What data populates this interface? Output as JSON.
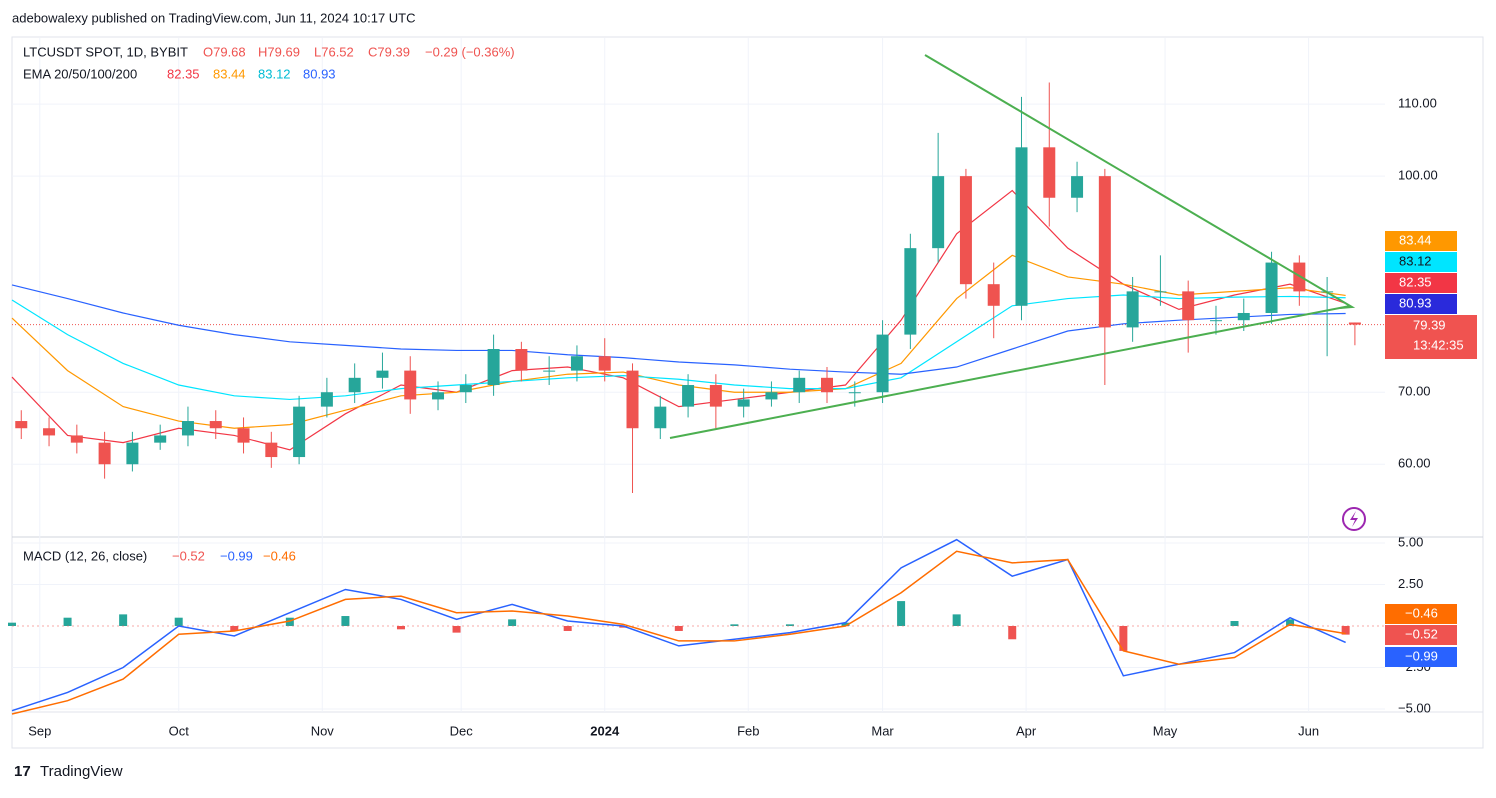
{
  "header": "adebowalexy published on TradingView.com, Jun 11, 2024 10:17 UTC",
  "footer": "TradingView",
  "chart_data": {
    "type": "candlestick",
    "symbol": "LTCUSDT SPOT, 1D, BYBIT",
    "ohlc_legend": {
      "open": "O79.68",
      "high": "H79.69",
      "low": "L76.52",
      "close": "C79.39",
      "change": "−0.29 (−0.36%)"
    },
    "x": [
      -4,
      2,
      8,
      14,
      20,
      26,
      32,
      38,
      44,
      50,
      56,
      62,
      68,
      74,
      80,
      86,
      92,
      98,
      104,
      110,
      116,
      122,
      128,
      134,
      140,
      146,
      152,
      158,
      164,
      170,
      176,
      182,
      188,
      194,
      200,
      206,
      212,
      218,
      224,
      230,
      236,
      242,
      248,
      254,
      260,
      266,
      272,
      278,
      284
    ],
    "open": [
      66,
      65,
      64,
      63,
      60,
      63,
      64,
      66,
      65,
      63,
      61,
      68,
      70,
      72,
      73,
      69,
      70,
      71,
      76,
      73,
      73,
      75,
      73,
      65,
      68,
      71,
      68,
      69,
      70,
      72,
      70,
      70,
      78,
      90,
      100,
      85,
      82,
      104,
      97,
      100,
      79,
      84,
      84,
      80,
      80,
      81,
      88,
      84,
      79.68
    ],
    "high": [
      67.5,
      66.5,
      65.5,
      64.5,
      64.5,
      65.5,
      68,
      67.5,
      66.5,
      64.5,
      69.5,
      72,
      74,
      75.5,
      75,
      71.5,
      72.5,
      78,
      77,
      75,
      76.5,
      77.5,
      74,
      69.5,
      72.5,
      72.5,
      70.5,
      71.5,
      73,
      73.5,
      71.5,
      80,
      92,
      106,
      101,
      88,
      111,
      113,
      102,
      101,
      86,
      89,
      85.5,
      82,
      83,
      89.5,
      89,
      86,
      79.69
    ],
    "low": [
      63.5,
      62.5,
      61.5,
      58,
      59,
      62,
      62.5,
      63.5,
      61.5,
      59.5,
      60,
      66.5,
      68.5,
      70.5,
      67,
      67.5,
      68.5,
      69.5,
      71.5,
      71,
      71.5,
      71.5,
      56,
      63.5,
      66.5,
      65,
      66.5,
      68,
      68.5,
      68.5,
      68,
      68.5,
      76,
      88,
      83,
      77.5,
      80,
      93,
      95,
      71,
      77,
      82,
      75.5,
      78,
      78.5,
      79.5,
      82,
      75,
      76.52
    ],
    "close": [
      65,
      64,
      63,
      60,
      63,
      64,
      66,
      65,
      63,
      61,
      68,
      70,
      72,
      73,
      69,
      70,
      71,
      76,
      73,
      73,
      75,
      73,
      65,
      68,
      71,
      68,
      69,
      70,
      72,
      70,
      70,
      78,
      90,
      100,
      85,
      82,
      104,
      97,
      100,
      79,
      84,
      84,
      80,
      80,
      81,
      88,
      84,
      84,
      79.39
    ],
    "up_color": "#26a69a",
    "down_color": "#ef5350",
    "xlim": [
      -6,
      290.5
    ],
    "xticks": [
      {
        "value": 0,
        "label": "Sep"
      },
      {
        "value": 30,
        "label": "Oct"
      },
      {
        "value": 61,
        "label": "Nov"
      },
      {
        "value": 91,
        "label": "Dec"
      },
      {
        "value": 122,
        "label": "2024"
      },
      {
        "value": 153,
        "label": "Feb"
      },
      {
        "value": 182,
        "label": "Mar"
      },
      {
        "value": 213,
        "label": "Apr"
      },
      {
        "value": 243,
        "label": "May"
      },
      {
        "value": 274,
        "label": "Jun"
      }
    ],
    "ylim": [
      49.9,
      118.9
    ],
    "yticks": [
      {
        "value": 60,
        "label": "60.00"
      },
      {
        "value": 70,
        "label": "70.00"
      },
      {
        "value": 100,
        "label": "100.00"
      },
      {
        "value": 110,
        "label": "110.00"
      }
    ],
    "last_price_label": "79.39",
    "countdown": "13:42:35",
    "ema": {
      "label": "EMA 20/50/100/200",
      "x": [
        -6,
        6,
        18,
        30,
        42,
        54,
        66,
        78,
        90,
        102,
        114,
        126,
        138,
        150,
        162,
        174,
        186,
        198,
        210,
        222,
        234,
        246,
        258,
        270,
        282
      ],
      "series": [
        {
          "name": "82.35",
          "color": "#f23645",
          "values": [
            72.1,
            64,
            63,
            65,
            64,
            62,
            67,
            71,
            70,
            73,
            73.5,
            72,
            68,
            69,
            70,
            71,
            80,
            92,
            98,
            90,
            85,
            81.5,
            83.5,
            85,
            82.35
          ]
        },
        {
          "name": "83.44",
          "color": "#ff9800",
          "values": [
            80.3,
            73,
            68,
            66,
            65,
            65.5,
            67.5,
            69.5,
            70,
            71.5,
            72.5,
            72.8,
            71,
            70,
            70,
            70.5,
            74,
            83,
            89,
            86,
            85,
            83.5,
            84,
            84.5,
            83.44
          ]
        },
        {
          "name": "83.12",
          "color": "#00e5ff",
          "values": [
            82.8,
            78,
            74,
            71,
            69.5,
            69,
            69.5,
            70.5,
            71,
            71.5,
            72,
            72.3,
            71.8,
            71,
            70.5,
            70.5,
            72,
            77,
            82,
            83,
            83.5,
            83,
            83.2,
            83.3,
            83.12
          ]
        },
        {
          "name": "80.93",
          "color": "#2962ff",
          "values": [
            84.9,
            83,
            81,
            79.3,
            78,
            77,
            76.5,
            76,
            75.8,
            75.8,
            75.2,
            74.8,
            74.2,
            73.8,
            73.2,
            72.8,
            72.5,
            73.5,
            76,
            78.5,
            79.5,
            80,
            80.4,
            80.8,
            80.93
          ]
        }
      ]
    },
    "macd": {
      "label": "MACD (12, 26, close)",
      "ylim": [
        -5.18,
        5.36
      ],
      "yticks": [
        {
          "value": 5,
          "label": "5.00"
        },
        {
          "value": 2.5,
          "label": "2.50"
        },
        {
          "value": -2.5,
          "label": "−2.50"
        },
        {
          "value": -5,
          "label": "−5.00"
        }
      ],
      "x": [
        -6,
        6,
        18,
        30,
        42,
        54,
        66,
        78,
        90,
        102,
        114,
        126,
        138,
        150,
        162,
        174,
        186,
        198,
        210,
        222,
        234,
        246,
        258,
        270,
        282
      ],
      "histogram": {
        "name": "−0.52",
        "color": "#ef5350",
        "up_color": "#26a69a",
        "values": [
          0.2,
          0.5,
          0.7,
          0.5,
          -0.3,
          0.5,
          0.6,
          -0.2,
          -0.4,
          0.4,
          -0.3,
          -0.1,
          -0.3,
          0.1,
          0.1,
          0.2,
          1.5,
          0.7,
          -0.8,
          0,
          -1.5,
          0,
          0.3,
          0.4,
          -0.52
        ]
      },
      "series": [
        {
          "name": "−0.99",
          "color": "#2962ff",
          "values": [
            -5.1,
            -4,
            -2.5,
            0,
            -0.6,
            0.8,
            2.2,
            1.6,
            0.4,
            1.3,
            0.3,
            0,
            -1.2,
            -0.8,
            -0.4,
            0.2,
            3.5,
            5.2,
            3,
            4,
            -3,
            -2.3,
            -1.6,
            0.5,
            -0.99
          ]
        },
        {
          "name": "−0.46",
          "color": "#ff6d00",
          "values": [
            -5.3,
            -4.5,
            -3.2,
            -0.5,
            -0.3,
            0.3,
            1.6,
            1.8,
            0.8,
            0.9,
            0.6,
            0.1,
            -0.9,
            -0.9,
            -0.5,
            0,
            2,
            4.5,
            3.8,
            4,
            -1.5,
            -2.3,
            -1.9,
            0.1,
            -0.46
          ]
        }
      ]
    }
  }
}
